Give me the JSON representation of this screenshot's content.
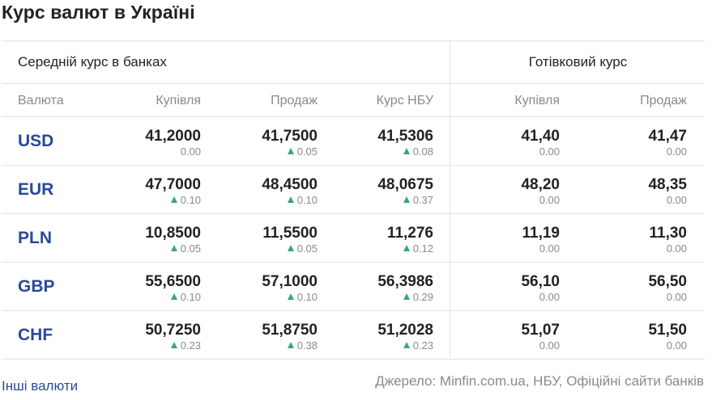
{
  "title": "Курс валют в Україні",
  "header": {
    "banks_average": "Середній курс в банках",
    "cash_rate": "Готівковий курс"
  },
  "columns": [
    "Валюта",
    "Купівля",
    "Продаж",
    "Курс НБУ",
    "Купівля",
    "Продаж"
  ],
  "rows": [
    {
      "code": "USD",
      "cells": [
        {
          "value": "41,2000",
          "change": "0.00",
          "up": false
        },
        {
          "value": "41,7500",
          "change": "0.05",
          "up": true
        },
        {
          "value": "41,5306",
          "change": "0.08",
          "up": true
        },
        {
          "value": "41,40",
          "change": "0.00",
          "up": false
        },
        {
          "value": "41,47",
          "change": "0.00",
          "up": false
        }
      ]
    },
    {
      "code": "EUR",
      "cells": [
        {
          "value": "47,7000",
          "change": "0.10",
          "up": true
        },
        {
          "value": "48,4500",
          "change": "0.10",
          "up": true
        },
        {
          "value": "48,0675",
          "change": "0.37",
          "up": true
        },
        {
          "value": "48,20",
          "change": "0.00",
          "up": false
        },
        {
          "value": "48,35",
          "change": "0.00",
          "up": false
        }
      ]
    },
    {
      "code": "PLN",
      "cells": [
        {
          "value": "10,8500",
          "change": "0.05",
          "up": true
        },
        {
          "value": "11,5500",
          "change": "0.05",
          "up": true
        },
        {
          "value": "11,276",
          "change": "0.12",
          "up": true
        },
        {
          "value": "11,19",
          "change": "0.00",
          "up": false
        },
        {
          "value": "11,30",
          "change": "0.00",
          "up": false
        }
      ]
    },
    {
      "code": "GBP",
      "cells": [
        {
          "value": "55,6500",
          "change": "0.10",
          "up": true
        },
        {
          "value": "57,1000",
          "change": "0.10",
          "up": true
        },
        {
          "value": "56,3986",
          "change": "0.29",
          "up": true
        },
        {
          "value": "56,10",
          "change": "0.00",
          "up": false
        },
        {
          "value": "56,50",
          "change": "0.00",
          "up": false
        }
      ]
    },
    {
      "code": "CHF",
      "cells": [
        {
          "value": "50,7250",
          "change": "0.23",
          "up": true
        },
        {
          "value": "51,8750",
          "change": "0.38",
          "up": true
        },
        {
          "value": "51,2028",
          "change": "0.23",
          "up": true
        },
        {
          "value": "51,07",
          "change": "0.00",
          "up": false
        },
        {
          "value": "51,50",
          "change": "0.00",
          "up": false
        }
      ]
    }
  ],
  "footer": {
    "other_currencies": "Інші валюти",
    "source": "Джерело: Minfin.com.ua, НБУ, Офіційні сайти банків"
  },
  "colors": {
    "currency_code": "#2a4a95",
    "up_arrow": "#3aa76d",
    "muted_text": "#8a8a8a"
  }
}
